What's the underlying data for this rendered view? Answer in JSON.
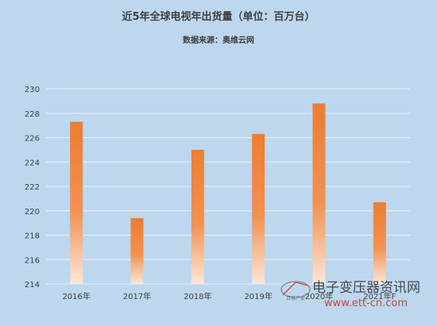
{
  "chart_data": {
    "type": "bar",
    "title": "近5年全球电视年出货量（单位：百万台）",
    "subtitle": "数据来源：奥维云网",
    "categories": [
      "2016年",
      "2017年",
      "2018年",
      "2019年",
      "2020年",
      "2021年F"
    ],
    "values": [
      227.3,
      219.4,
      225.0,
      226.3,
      228.8,
      220.7
    ],
    "ylim": [
      214,
      230
    ],
    "yticks": [
      214,
      216,
      218,
      220,
      222,
      224,
      226,
      228,
      230
    ],
    "grid": true,
    "legend": "none",
    "colors": {
      "background": "#bdd7ee",
      "bar_top": "#ed7d31",
      "bar_bottom": "#fbe3d3"
    }
  },
  "watermark": {
    "text": "电子变压器资讯网",
    "url": "www.ett-cn.com",
    "small": "百易产友"
  }
}
